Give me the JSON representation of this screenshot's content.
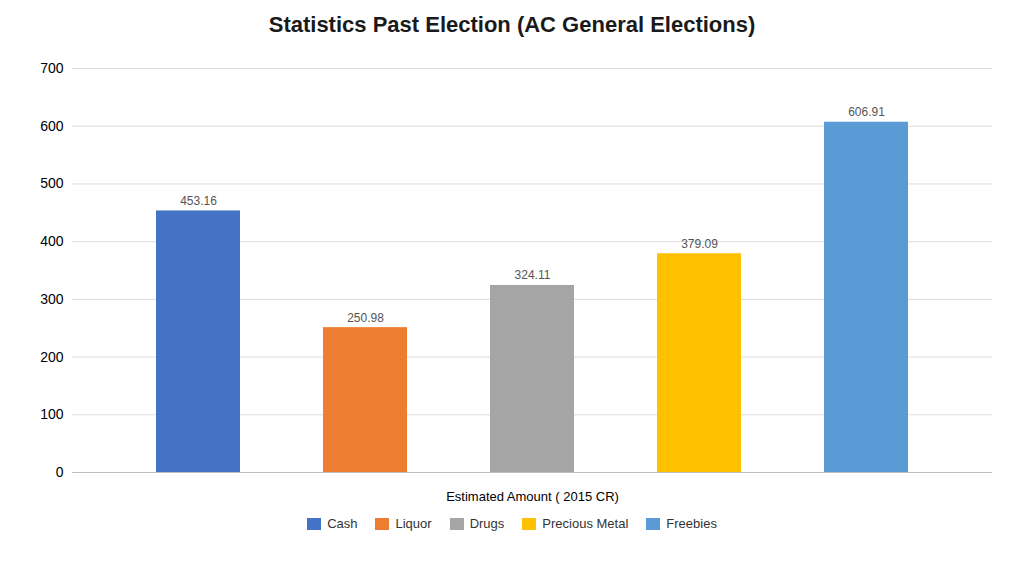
{
  "chart_data": {
    "type": "bar",
    "title": "Statistics Past Election (AC General Elections)",
    "categories": [
      "Cash",
      "Liquor",
      "Drugs",
      "Precious Metal",
      "Freebies"
    ],
    "values": [
      453.16,
      250.98,
      324.11,
      379.09,
      606.91
    ],
    "colors": [
      "#4472C4",
      "#ED7D31",
      "#A5A5A5",
      "#FFC000",
      "#5B9BD5"
    ],
    "xlabel": "Estimated Amount ( 2015 CR)",
    "ylim": [
      0,
      700
    ],
    "yticks": [
      0,
      100,
      200,
      300,
      400,
      500,
      600,
      700
    ],
    "grid": true,
    "data_labels": true,
    "tick_labels": "y",
    "legend": "bottom"
  }
}
